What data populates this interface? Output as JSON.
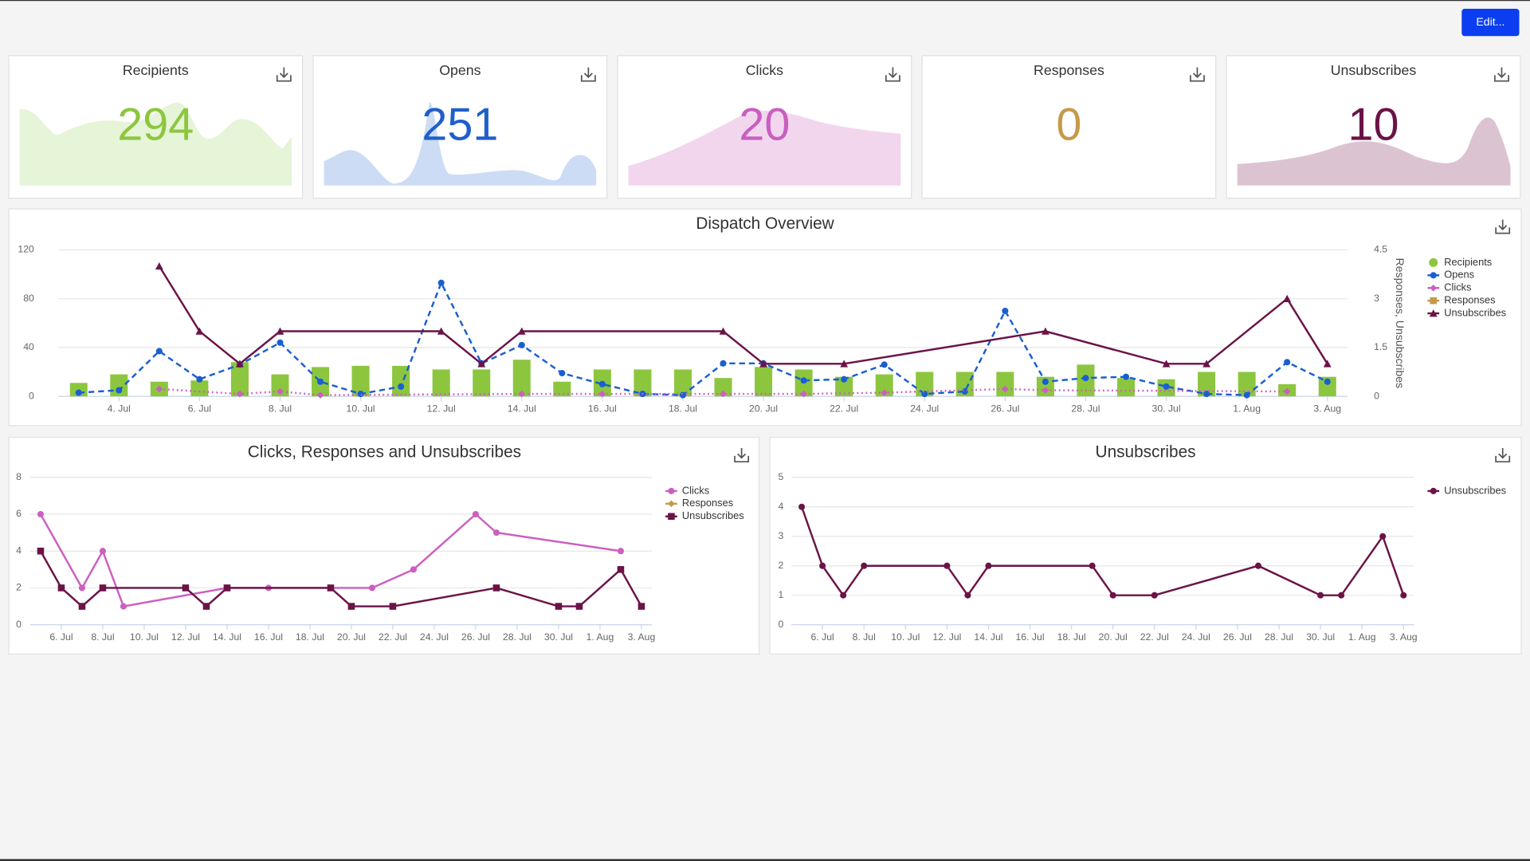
{
  "button": "Edit...",
  "kpis": [
    {
      "title": "Recipients",
      "value": 294,
      "color": "#8cc63f"
    },
    {
      "title": "Opens",
      "value": 251,
      "color": "#1f5fcc"
    },
    {
      "title": "Clicks",
      "value": 20,
      "color": "#c85fbf"
    },
    {
      "title": "Responses",
      "value": 0,
      "color": "#c49a4a"
    },
    {
      "title": "Unsubscribes",
      "value": 10,
      "color": "#6b1347"
    }
  ],
  "chart_data": [
    {
      "type": "combo",
      "title": "Dispatch Overview",
      "categories": [
        null,
        "4. Jul",
        null,
        "6. Jul",
        null,
        "8. Jul",
        null,
        "10. Jul",
        null,
        "12. Jul",
        null,
        "14. Jul",
        null,
        "16. Jul",
        null,
        "18. Jul",
        null,
        "20. Jul",
        null,
        "22. Jul",
        null,
        "24. Jul",
        null,
        "26. Jul",
        null,
        "28. Jul",
        null,
        "30. Jul",
        null,
        "1. Aug",
        null,
        "3. Aug"
      ],
      "ylim": [
        0,
        120
      ],
      "yticks": [
        0,
        40,
        80,
        120
      ],
      "y2lim": [
        0,
        4.5
      ],
      "y2ticks": [
        0,
        1.5,
        3,
        4.5
      ],
      "y2label": "Responses, Unsubscribes",
      "grid": true,
      "connect_nulls": true,
      "legend": "right",
      "series": [
        {
          "name": "Recipients",
          "type": "bar",
          "color": "#8cc63f",
          "marker": "circle",
          "values": [
            11,
            18,
            12,
            13,
            28,
            18,
            24,
            25,
            25,
            22,
            22,
            30,
            12,
            22,
            22,
            22,
            15,
            24,
            22,
            16,
            18,
            20,
            20,
            20,
            16,
            26,
            15,
            14,
            20,
            20,
            10,
            16
          ]
        },
        {
          "name": "Opens",
          "type": "line",
          "color": "#1a5fd1",
          "marker": "circle",
          "dash": "dashed",
          "values": [
            3,
            5,
            37,
            14,
            26,
            44,
            12,
            2,
            8,
            93,
            27,
            42,
            19,
            10,
            2,
            1,
            27,
            27,
            13,
            14,
            26,
            2,
            4,
            70,
            12,
            15,
            16,
            8,
            2,
            1,
            28,
            12
          ]
        },
        {
          "name": "Clicks",
          "type": "line",
          "color": "#cc5fbf",
          "marker": "diamond",
          "dash": "dotted",
          "values": [
            null,
            null,
            6,
            null,
            2,
            4,
            1,
            null,
            null,
            null,
            null,
            2,
            null,
            2,
            null,
            null,
            2,
            null,
            2,
            null,
            3,
            null,
            null,
            6,
            5,
            null,
            null,
            null,
            null,
            null,
            4,
            null
          ]
        },
        {
          "name": "Responses",
          "type": "line",
          "color": "#c49a4a",
          "marker": "square",
          "axis": "y2",
          "values": [
            null,
            null,
            null,
            null,
            null,
            null,
            null,
            null,
            null,
            null,
            null,
            null,
            null,
            null,
            null,
            null,
            null,
            null,
            null,
            null,
            null,
            null,
            null,
            null,
            null,
            null,
            null,
            null,
            null,
            null,
            null,
            null
          ]
        },
        {
          "name": "Unsubscribes",
          "type": "line",
          "color": "#6b1347",
          "marker": "triangle",
          "axis": "y2",
          "values": [
            null,
            null,
            4,
            2,
            1,
            2,
            null,
            null,
            null,
            2,
            1,
            2,
            null,
            null,
            null,
            null,
            2,
            1,
            null,
            1,
            null,
            null,
            null,
            null,
            2,
            null,
            null,
            1,
            1,
            null,
            3,
            1
          ]
        }
      ]
    },
    {
      "type": "line",
      "title": "Clicks, Responses and Unsubscribes",
      "categories": [
        null,
        "6. Jul",
        null,
        "8. Jul",
        null,
        "10. Jul",
        null,
        "12. Jul",
        null,
        "14. Jul",
        null,
        "16. Jul",
        null,
        "18. Jul",
        null,
        "20. Jul",
        null,
        "22. Jul",
        null,
        "24. Jul",
        null,
        "26. Jul",
        null,
        "28. Jul",
        null,
        "30. Jul",
        null,
        "1. Aug",
        null,
        "3. Aug"
      ],
      "ylim": [
        0,
        8
      ],
      "yticks": [
        0,
        2,
        4,
        6,
        8
      ],
      "grid": true,
      "connect_nulls": true,
      "legend": "right",
      "series": [
        {
          "name": "Clicks",
          "type": "line",
          "color": "#cc5fbf",
          "marker": "circle",
          "values": [
            6,
            null,
            2,
            4,
            1,
            null,
            null,
            null,
            null,
            2,
            null,
            2,
            null,
            null,
            2,
            null,
            2,
            null,
            3,
            null,
            null,
            6,
            5,
            null,
            null,
            null,
            null,
            null,
            4,
            null
          ]
        },
        {
          "name": "Responses",
          "type": "line",
          "color": "#c49a4a",
          "marker": "diamond",
          "values": [
            null,
            null,
            null,
            null,
            null,
            null,
            null,
            null,
            null,
            null,
            null,
            null,
            null,
            null,
            null,
            null,
            null,
            null,
            null,
            null,
            null,
            null,
            null,
            null,
            null,
            null,
            null,
            null,
            null,
            null
          ]
        },
        {
          "name": "Unsubscribes",
          "type": "line",
          "color": "#6b1347",
          "marker": "square",
          "values": [
            4,
            2,
            1,
            2,
            null,
            null,
            null,
            2,
            1,
            2,
            null,
            null,
            null,
            null,
            2,
            1,
            null,
            1,
            null,
            null,
            null,
            null,
            2,
            null,
            null,
            1,
            1,
            null,
            3,
            1
          ]
        }
      ]
    },
    {
      "type": "line",
      "title": "Unsubscribes",
      "categories": [
        null,
        "6. Jul",
        null,
        "8. Jul",
        null,
        "10. Jul",
        null,
        "12. Jul",
        null,
        "14. Jul",
        null,
        "16. Jul",
        null,
        "18. Jul",
        null,
        "20. Jul",
        null,
        "22. Jul",
        null,
        "24. Jul",
        null,
        "26. Jul",
        null,
        "28. Jul",
        null,
        "30. Jul",
        null,
        "1. Aug",
        null,
        "3. Aug"
      ],
      "ylim": [
        0,
        5
      ],
      "yticks": [
        0,
        1,
        2,
        3,
        4,
        5
      ],
      "grid": true,
      "connect_nulls": true,
      "legend": "right",
      "series": [
        {
          "name": "Unsubscribes",
          "type": "line",
          "color": "#6b1347",
          "marker": "circle",
          "values": [
            4,
            2,
            1,
            2,
            null,
            null,
            null,
            2,
            1,
            2,
            null,
            null,
            null,
            null,
            2,
            1,
            null,
            1,
            null,
            null,
            null,
            null,
            2,
            null,
            null,
            1,
            1,
            null,
            3,
            1
          ]
        }
      ]
    }
  ]
}
